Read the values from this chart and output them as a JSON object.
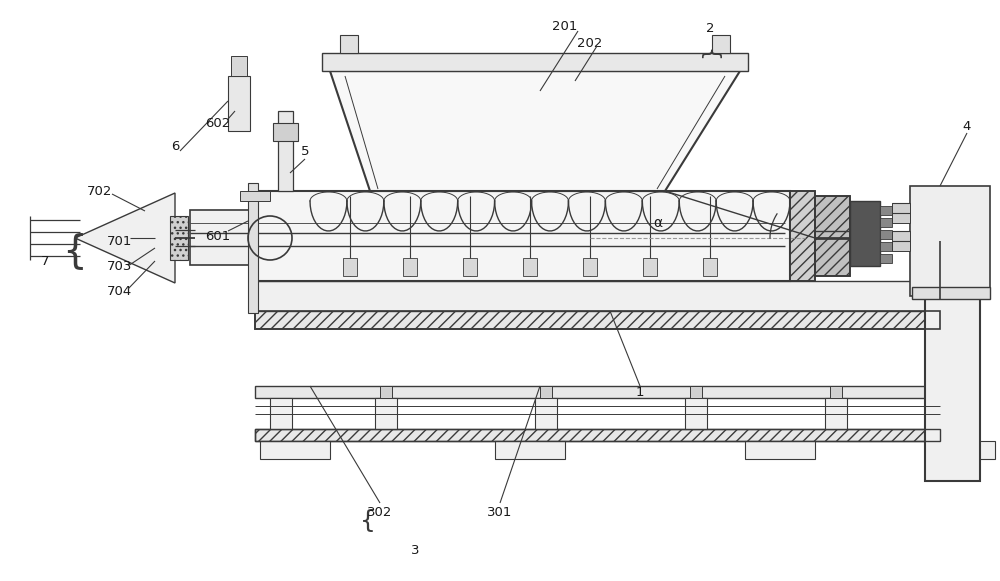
{
  "bg_color": "#ffffff",
  "line_color": "#3a3a3a",
  "label_color": "#1a1a1a",
  "figsize": [
    10.0,
    5.81
  ],
  "dpi": 100
}
